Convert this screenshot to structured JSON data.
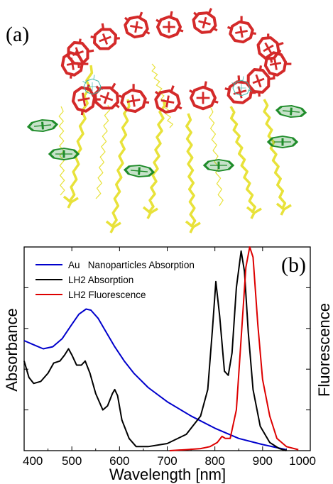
{
  "panel_a": {
    "label": "(a)",
    "structure": "LH2 light-harvesting complex ring",
    "colors": {
      "bchl_ring": "#d42a2a",
      "carotenoid": "#e8e23a",
      "bchl_monomer": "#1f8c2a"
    }
  },
  "panel_b": {
    "label": "(b)"
  },
  "chart_data": {
    "type": "line",
    "xlabel": "Wavelength [nm]",
    "ylabel_left": "Absorbance",
    "ylabel_right": "Fluorescence",
    "xlim": [
      400,
      1000
    ],
    "xticks": [
      400,
      500,
      600,
      700,
      800,
      900,
      1000
    ],
    "xtick_labels": [
      "400",
      "500",
      "600",
      "700",
      "800",
      "900",
      "1000"
    ],
    "ylim": [
      0,
      1
    ],
    "grid": false,
    "legend_position": "top-left",
    "series": [
      {
        "name": "Au   Nanoparticles Absorption",
        "color": "#0000cc",
        "points": [
          [
            400,
            0.54
          ],
          [
            420,
            0.52
          ],
          [
            440,
            0.5
          ],
          [
            460,
            0.51
          ],
          [
            480,
            0.55
          ],
          [
            500,
            0.62
          ],
          [
            515,
            0.67
          ],
          [
            530,
            0.695
          ],
          [
            540,
            0.69
          ],
          [
            555,
            0.65
          ],
          [
            570,
            0.59
          ],
          [
            590,
            0.51
          ],
          [
            610,
            0.44
          ],
          [
            630,
            0.38
          ],
          [
            660,
            0.31
          ],
          [
            700,
            0.24
          ],
          [
            750,
            0.17
          ],
          [
            800,
            0.11
          ],
          [
            850,
            0.06
          ],
          [
            900,
            0.03
          ],
          [
            950,
            0.005
          ]
        ]
      },
      {
        "name": "LH2 Absorption",
        "color": "#000000",
        "points": [
          [
            400,
            0.44
          ],
          [
            410,
            0.36
          ],
          [
            420,
            0.33
          ],
          [
            435,
            0.34
          ],
          [
            450,
            0.38
          ],
          [
            462,
            0.43
          ],
          [
            475,
            0.44
          ],
          [
            485,
            0.47
          ],
          [
            493,
            0.5
          ],
          [
            500,
            0.47
          ],
          [
            510,
            0.42
          ],
          [
            520,
            0.42
          ],
          [
            528,
            0.44
          ],
          [
            538,
            0.38
          ],
          [
            550,
            0.28
          ],
          [
            565,
            0.2
          ],
          [
            575,
            0.22
          ],
          [
            585,
            0.28
          ],
          [
            590,
            0.3
          ],
          [
            596,
            0.27
          ],
          [
            605,
            0.15
          ],
          [
            620,
            0.06
          ],
          [
            635,
            0.02
          ],
          [
            660,
            0.02
          ],
          [
            700,
            0.035
          ],
          [
            740,
            0.08
          ],
          [
            770,
            0.17
          ],
          [
            785,
            0.3
          ],
          [
            795,
            0.6
          ],
          [
            802,
            0.83
          ],
          [
            810,
            0.66
          ],
          [
            820,
            0.39
          ],
          [
            828,
            0.37
          ],
          [
            836,
            0.48
          ],
          [
            845,
            0.8
          ],
          [
            855,
            0.98
          ],
          [
            862,
            0.88
          ],
          [
            870,
            0.58
          ],
          [
            880,
            0.3
          ],
          [
            895,
            0.12
          ],
          [
            915,
            0.04
          ],
          [
            935,
            0.01
          ],
          [
            950,
            0.0
          ]
        ]
      },
      {
        "name": "LH2 Fluorescence",
        "color": "#dd0000",
        "points": [
          [
            705,
            0.0
          ],
          [
            740,
            0.005
          ],
          [
            770,
            0.01
          ],
          [
            790,
            0.02
          ],
          [
            805,
            0.04
          ],
          [
            815,
            0.07
          ],
          [
            822,
            0.06
          ],
          [
            832,
            0.06
          ],
          [
            845,
            0.2
          ],
          [
            855,
            0.55
          ],
          [
            865,
            0.9
          ],
          [
            873,
            1.0
          ],
          [
            880,
            0.95
          ],
          [
            890,
            0.62
          ],
          [
            900,
            0.35
          ],
          [
            915,
            0.17
          ],
          [
            930,
            0.06
          ],
          [
            950,
            0.02
          ],
          [
            975,
            0.005
          ]
        ]
      }
    ]
  }
}
